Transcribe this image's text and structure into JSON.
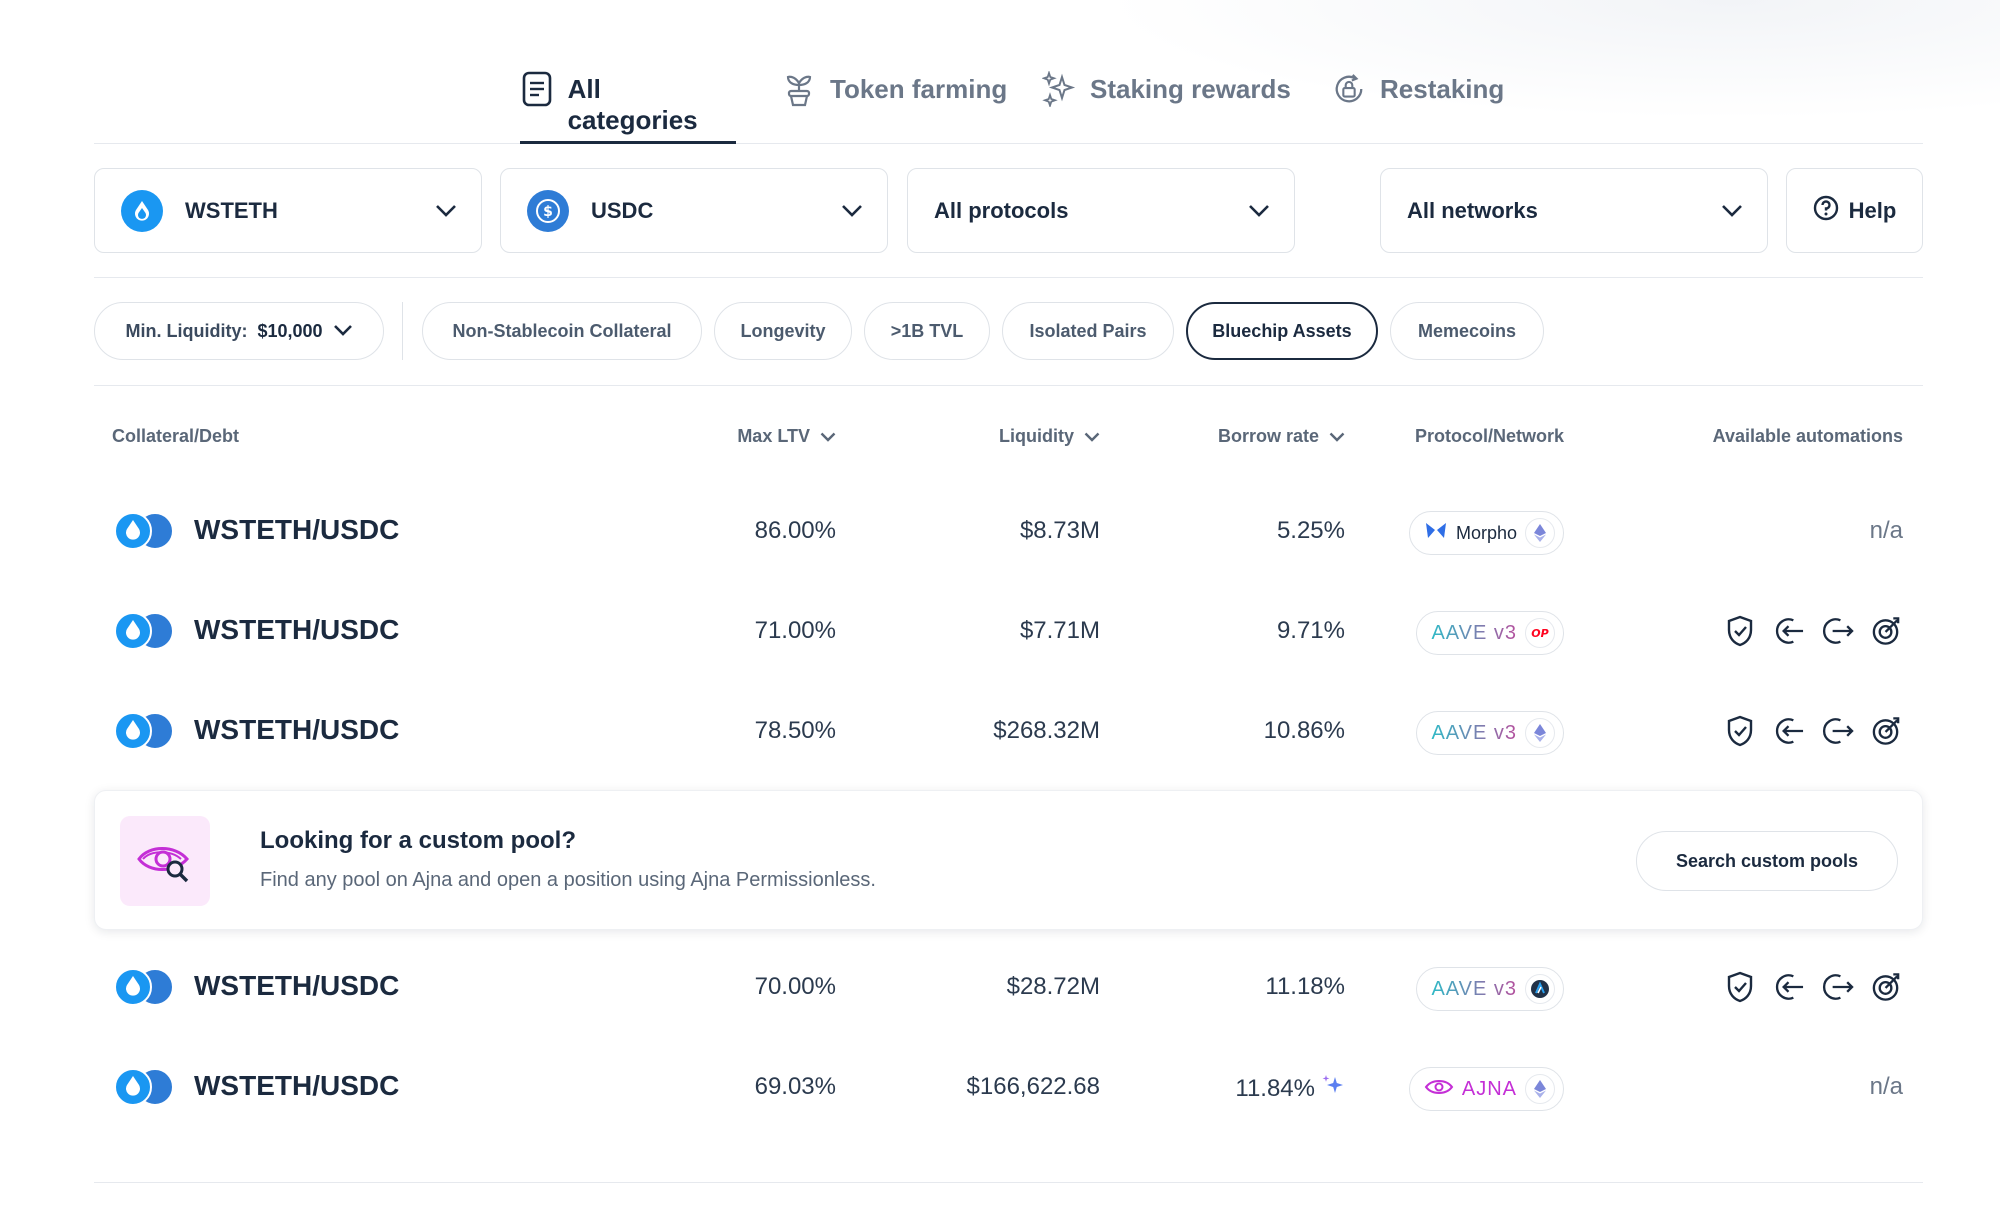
{
  "tabs": [
    {
      "label": "All categories",
      "icon": "document-icon",
      "active": true
    },
    {
      "label": "Token farming",
      "icon": "plant-icon",
      "active": false
    },
    {
      "label": "Staking rewards",
      "icon": "sparkles-icon",
      "active": false
    },
    {
      "label": "Restaking",
      "icon": "lock-refresh-icon",
      "active": false
    }
  ],
  "filters": {
    "collateral": {
      "value": "WSTETH",
      "icon": "wsteth-icon"
    },
    "debt": {
      "value": "USDC",
      "icon": "usdc-icon"
    },
    "protocols": {
      "value": "All protocols"
    },
    "networks": {
      "value": "All networks"
    },
    "help_label": "Help"
  },
  "chips": {
    "min_liquidity_prefix": "Min. Liquidity:",
    "min_liquidity_value": "$10,000",
    "items": [
      {
        "label": "Non-Stablecoin Collateral",
        "active": false
      },
      {
        "label": "Longevity",
        "active": false
      },
      {
        "label": ">1B TVL",
        "active": false
      },
      {
        "label": "Isolated Pairs",
        "active": false
      },
      {
        "label": "Bluechip Assets",
        "active": true
      },
      {
        "label": "Memecoins",
        "active": false
      }
    ]
  },
  "table": {
    "headers": {
      "pair": "Collateral/Debt",
      "ltv": "Max LTV",
      "liquidity": "Liquidity",
      "rate": "Borrow rate",
      "protocol": "Protocol/Network",
      "automations": "Available automations"
    },
    "rows": [
      {
        "pair": "WSTETH/USDC",
        "ltv": "86.00%",
        "liquidity": "$8.73M",
        "rate": "5.25%",
        "protocol": "Morpho",
        "protocol_logo": "morpho-logo",
        "network": "ethereum-icon",
        "automations": "n/a"
      },
      {
        "pair": "WSTETH/USDC",
        "ltv": "71.00%",
        "liquidity": "$7.71M",
        "rate": "9.71%",
        "protocol": "AAVE v3",
        "protocol_logo": "aave-logo",
        "network": "optimism-icon",
        "automations": [
          "stop-loss-shield-icon",
          "auto-buy-icon",
          "auto-sell-icon",
          "take-profit-target-icon"
        ]
      },
      {
        "pair": "WSTETH/USDC",
        "ltv": "78.50%",
        "liquidity": "$268.32M",
        "rate": "10.86%",
        "protocol": "AAVE v3",
        "protocol_logo": "aave-logo",
        "network": "ethereum-icon",
        "automations": [
          "stop-loss-shield-icon",
          "auto-buy-icon",
          "auto-sell-icon",
          "take-profit-target-icon"
        ]
      },
      {
        "pair": "WSTETH/USDC",
        "ltv": "70.00%",
        "liquidity": "$28.72M",
        "rate": "11.18%",
        "protocol": "AAVE v3",
        "protocol_logo": "aave-logo",
        "network": "arbitrum-icon",
        "automations": [
          "stop-loss-shield-icon",
          "auto-buy-icon",
          "auto-sell-icon",
          "take-profit-target-icon"
        ]
      },
      {
        "pair": "WSTETH/USDC",
        "ltv": "69.03%",
        "liquidity": "$166,622.68",
        "rate": "11.84%",
        "rate_badge": "sparkles-icon",
        "protocol": "AJNA",
        "protocol_logo": "ajna-logo",
        "network": "ethereum-icon",
        "automations": "n/a"
      }
    ]
  },
  "banner": {
    "title": "Looking for a custom pool?",
    "description": "Find any pool on Ajna and open a position using Ajna Permissionless.",
    "button": "Search custom pools",
    "icon": "eye-search-icon"
  },
  "colors": {
    "text_primary": "#1b2a3f",
    "text_muted": "#6b7788",
    "border": "#dfe3e8",
    "wsteth_blue": "#1a97f2",
    "usdc_blue": "#2e7cd6",
    "aave_gradient_start": "#2ebac6",
    "aave_gradient_end": "#b6509e",
    "ajna_purple": "#c42fd6",
    "morpho_blue": "#2f6ee6",
    "ethereum_purple": "#7b86d9",
    "optimism_red": "#ff0420"
  }
}
